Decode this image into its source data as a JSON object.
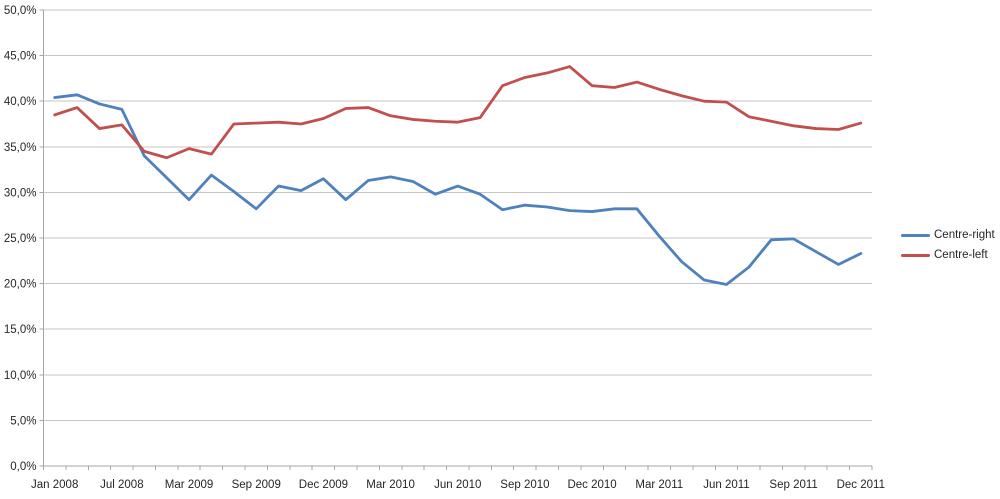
{
  "chart_data": {
    "type": "line",
    "n_points": 37,
    "visible_x_labels": [
      "Jan 2008",
      "Jul 2008",
      "Mar 2009",
      "Sep 2009",
      "Dec 2009",
      "Mar 2010",
      "Jun 2010",
      "Sep 2010",
      "Dec 2010",
      "Mar 2011",
      "Jun 2011",
      "Sep 2011",
      "Dec 2011"
    ],
    "x_label_every": 3,
    "y_tick_labels": [
      "0,0%",
      "5,0%",
      "10,0%",
      "15,0%",
      "20,0%",
      "25,0%",
      "30,0%",
      "35,0%",
      "40,0%",
      "45,0%",
      "50,0%"
    ],
    "ylim": [
      0,
      50
    ],
    "y_tick_step": 5,
    "grid": "horizontal-only",
    "legend_position": "right",
    "background": "#ffffff",
    "gridline_color": "#c6c6c6",
    "axis_color": "#a6a6a6",
    "text_color": "#262626",
    "series": [
      {
        "name": "Centre-right",
        "color": "#4F81BD",
        "values": [
          40.4,
          40.7,
          39.7,
          39.1,
          34.0,
          31.6,
          29.2,
          31.9,
          30.1,
          28.2,
          30.7,
          30.2,
          31.5,
          29.2,
          31.3,
          31.7,
          31.2,
          29.8,
          30.7,
          29.8,
          28.1,
          28.6,
          28.4,
          28.0,
          27.9,
          28.2,
          28.2,
          25.2,
          22.4,
          20.4,
          19.9,
          21.8,
          24.8,
          24.9,
          23.5,
          22.1,
          23.3
        ]
      },
      {
        "name": "Centre-left",
        "color": "#C0504D",
        "values": [
          38.5,
          39.3,
          37.0,
          37.4,
          34.5,
          33.8,
          34.8,
          34.2,
          37.5,
          37.6,
          37.7,
          37.5,
          38.1,
          39.2,
          39.3,
          38.4,
          38.0,
          37.8,
          37.7,
          38.2,
          41.7,
          42.6,
          43.1,
          43.8,
          41.7,
          41.5,
          42.1,
          41.3,
          40.6,
          40.0,
          39.9,
          38.3,
          37.8,
          37.3,
          37.0,
          36.9,
          37.6
        ]
      }
    ]
  }
}
